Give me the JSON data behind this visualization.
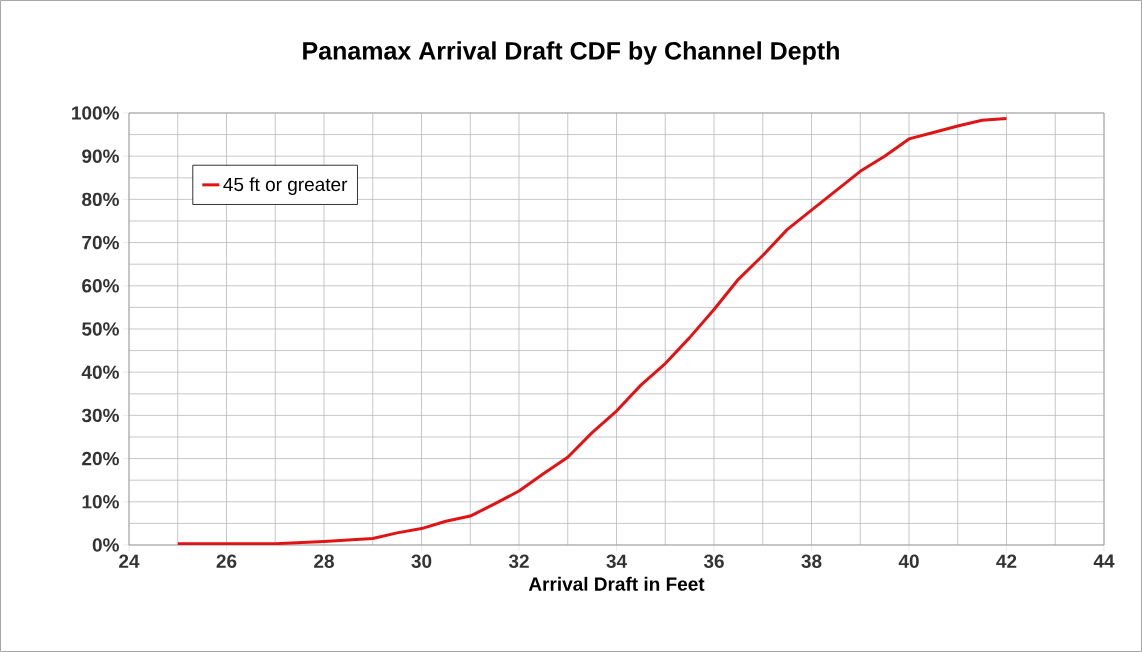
{
  "chart_data": {
    "type": "line",
    "title": "Panamax Arrival Draft CDF by Channel Depth",
    "xlabel": "Arrival Draft in Feet",
    "x": [
      25,
      26,
      27,
      28,
      29,
      29.5,
      30,
      30.5,
      31,
      31.5,
      32,
      32.5,
      33,
      33.5,
      34,
      34.5,
      35,
      35.5,
      36,
      36.5,
      37,
      37.5,
      38,
      38.5,
      39,
      39.5,
      40,
      40.5,
      41,
      41.5,
      42
    ],
    "series": [
      {
        "name": "45 ft or greater",
        "color": "#e01414",
        "values": [
          0.3,
          0.3,
          0.3,
          0.8,
          1.5,
          2.8,
          3.8,
          5.5,
          6.7,
          9.5,
          12.5,
          16.5,
          20.3,
          26,
          31,
          37,
          42,
          48,
          54.5,
          61.5,
          67,
          73,
          77.5,
          82,
          86.5,
          90,
          94,
          95.5,
          97,
          98.3,
          98.7
        ]
      }
    ],
    "xlim": [
      24,
      44
    ],
    "xticks": [
      24,
      26,
      28,
      30,
      32,
      34,
      36,
      38,
      40,
      42,
      44
    ],
    "ylim": [
      0,
      100
    ],
    "yticks": [
      {
        "value": 0,
        "label": "0%"
      },
      {
        "value": 10,
        "label": "10%"
      },
      {
        "value": 20,
        "label": "20%"
      },
      {
        "value": 30,
        "label": "30%"
      },
      {
        "value": 40,
        "label": "40%"
      },
      {
        "value": 50,
        "label": "50%"
      },
      {
        "value": 60,
        "label": "60%"
      },
      {
        "value": 70,
        "label": "70%"
      },
      {
        "value": 80,
        "label": "80%"
      },
      {
        "value": 90,
        "label": "90%"
      },
      {
        "value": 100,
        "label": "100%"
      }
    ],
    "grid": true,
    "legend": "top left",
    "marker": "none",
    "line_style": "solid"
  }
}
